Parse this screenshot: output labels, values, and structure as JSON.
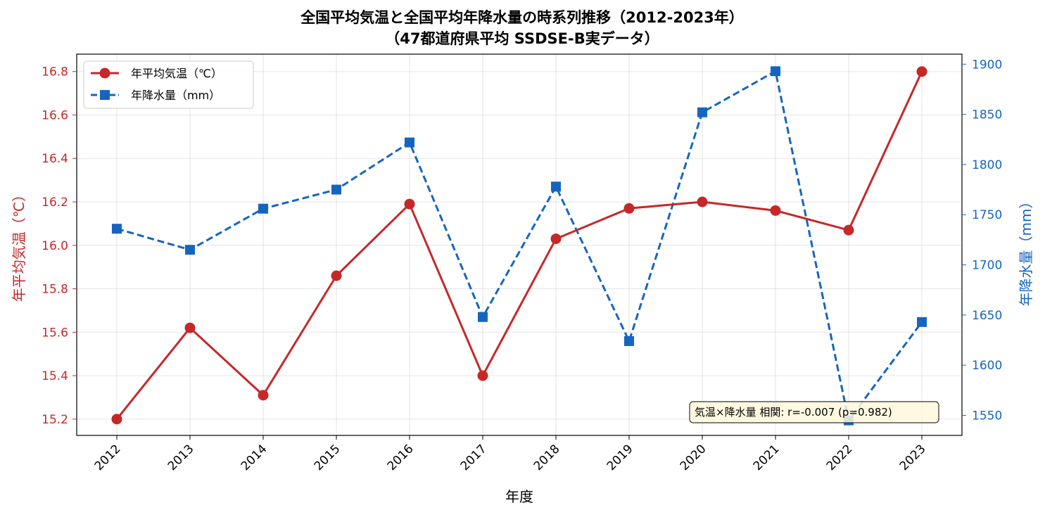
{
  "chart_data": {
    "type": "line",
    "title": "全国平均気温と全国平均年降水量の時系列推移（2012-2023年）",
    "subtitle": "（47都道府県平均 SSDSE-B実データ）",
    "xlabel": "年度",
    "ylabel_left": "年平均気温（℃）",
    "ylabel_right": "年降水量（mm）",
    "categories": [
      "2012",
      "2013",
      "2014",
      "2015",
      "2016",
      "2017",
      "2018",
      "2019",
      "2020",
      "2021",
      "2022",
      "2023"
    ],
    "series": [
      {
        "name": "年平均気温（℃）",
        "axis": "left",
        "color": "#c62828",
        "marker": "circle",
        "line_style": "solid",
        "values": [
          15.2,
          15.62,
          15.31,
          15.86,
          16.19,
          15.4,
          16.03,
          16.17,
          16.2,
          16.16,
          16.07,
          16.8
        ]
      },
      {
        "name": "年降水量（mm）",
        "axis": "right",
        "color": "#1565c0",
        "marker": "square",
        "line_style": "dashed",
        "values": [
          1736,
          1715,
          1756,
          1775,
          1822,
          1648,
          1778,
          1624,
          1852,
          1893,
          1545,
          1643
        ]
      }
    ],
    "ylim_left": [
      15.125,
      16.88
    ],
    "ylim_right": [
      1530,
      1910
    ],
    "yticks_left": [
      "15.2",
      "15.4",
      "15.6",
      "15.8",
      "16.0",
      "16.2",
      "16.4",
      "16.6",
      "16.8"
    ],
    "yticks_right": [
      "1550",
      "1600",
      "1650",
      "1700",
      "1750",
      "1800",
      "1850",
      "1900"
    ],
    "grid": true,
    "legend_position": "top-left",
    "annotation": "気温×降水量 相関: r=-0.007 (p=0.982)"
  }
}
